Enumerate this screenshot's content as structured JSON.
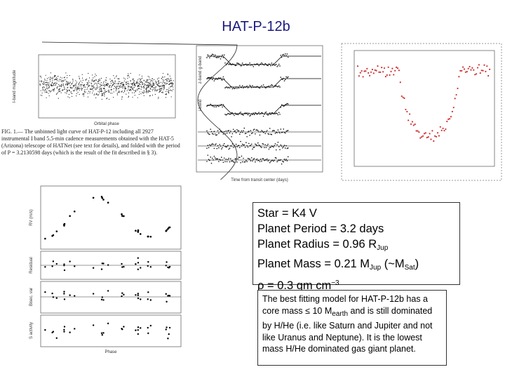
{
  "title": "HAT-P-12b",
  "light_curve": {
    "y_label": "I-band magnitude",
    "x_label": "Orbital phase",
    "caption": "FIG. 1.— The unbinned light curve of HAT-P-12 including all 2927 instrumental I band 5.5-min cadence measurements obtained with the HAT-5 (Arizona) telescope of HATNet (see text for details), and folded with the period of P = 3.2130598 days (which is the result of the fit described in § 3)."
  },
  "transit": {
    "band_labels": [
      "g-band",
      "z-band",
      "i-band"
    ],
    "x_label": "Time from transit center (days)"
  },
  "rv": {
    "panel_labels": [
      "RV (m/s)",
      "Residual",
      "Bisec. var",
      "S activity"
    ],
    "x_label": "Phase"
  },
  "facts": [
    [
      "Star = K4 V"
    ],
    [
      "Planet Period = 3.2 days"
    ],
    [
      "Planet Radius = 0.96 R",
      {
        "sub": "Jup"
      }
    ],
    [
      "Planet Mass = 0.21 M",
      {
        "sub": "Jup"
      },
      "  (~M",
      {
        "sub": "Sat"
      },
      ")"
    ],
    [
      "ρ = 0.3 gm cm",
      {
        "sup": "−3"
      }
    ]
  ],
  "note": [
    "The best fitting model for HAT-P-12b has a core mass ≤ 10 M",
    {
      "sub": "earth"
    },
    " and is still dominated by H/He (i.e. like Saturn and Jupiter and not like Uranus and Neptune). It is the lowest mass H/He  dominated gas giant planet."
  ]
}
